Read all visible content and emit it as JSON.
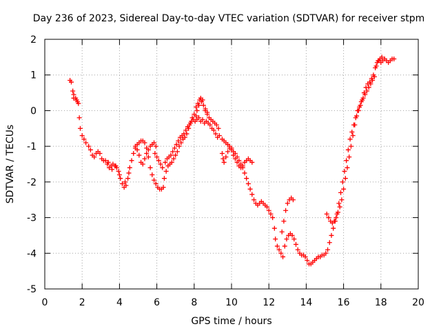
{
  "chart_data": {
    "type": "scatter",
    "title": "Day 236 of 2023, Sidereal Day-to-day VTEC variation (SDTVAR) for receiver stpm",
    "xlabel": "GPS time / hours",
    "ylabel": "SDTVAR / TECUs",
    "xlim": [
      0,
      20
    ],
    "ylim": [
      -5,
      2
    ],
    "xticks": [
      "0",
      "2",
      "4",
      "6",
      "8",
      "10",
      "12",
      "14",
      "16",
      "18",
      "20"
    ],
    "yticks": [
      "2",
      "1",
      "0",
      "-1",
      "-2",
      "-3",
      "-4",
      "-5"
    ],
    "grid": true,
    "marker": "plus",
    "series_color": "#ff0000",
    "series": [
      {
        "points": [
          [
            1.35,
            0.85
          ],
          [
            1.42,
            0.8
          ],
          [
            1.5,
            0.55
          ],
          [
            1.55,
            0.35
          ],
          [
            1.65,
            0.35
          ],
          [
            1.75,
            0.25
          ],
          [
            1.8,
            0.2
          ],
          [
            1.85,
            -0.2
          ],
          [
            1.9,
            -0.5
          ],
          [
            2.0,
            -0.7
          ],
          [
            2.1,
            -0.8
          ],
          [
            2.2,
            -0.9
          ],
          [
            2.35,
            -1.0
          ],
          [
            2.45,
            -1.1
          ],
          [
            2.55,
            -1.25
          ],
          [
            2.65,
            -1.3
          ],
          [
            2.75,
            -1.2
          ],
          [
            2.85,
            -1.15
          ],
          [
            2.95,
            -1.2
          ],
          [
            3.05,
            -1.35
          ],
          [
            3.15,
            -1.4
          ],
          [
            3.25,
            -1.4
          ],
          [
            3.35,
            -1.5
          ],
          [
            3.45,
            -1.6
          ],
          [
            3.55,
            -1.55
          ],
          [
            3.65,
            -1.5
          ],
          [
            3.75,
            -1.55
          ],
          [
            3.85,
            -1.6
          ],
          [
            3.95,
            -1.7
          ],
          [
            4.05,
            -1.9
          ],
          [
            4.15,
            -2.05
          ],
          [
            4.25,
            -2.15
          ],
          [
            4.35,
            -2.1
          ],
          [
            4.45,
            -1.9
          ],
          [
            4.55,
            -1.6
          ],
          [
            4.65,
            -1.4
          ],
          [
            4.75,
            -1.2
          ],
          [
            4.85,
            -1.05
          ],
          [
            4.95,
            -0.95
          ],
          [
            5.05,
            -0.9
          ],
          [
            5.15,
            -0.85
          ],
          [
            5.25,
            -0.85
          ],
          [
            5.35,
            -0.9
          ],
          [
            5.45,
            -1.05
          ],
          [
            5.55,
            -1.3
          ],
          [
            5.65,
            -1.6
          ],
          [
            5.75,
            -1.8
          ],
          [
            5.85,
            -1.95
          ],
          [
            5.95,
            -2.05
          ],
          [
            6.05,
            -2.15
          ],
          [
            6.15,
            -2.2
          ],
          [
            6.25,
            -2.2
          ],
          [
            6.35,
            -2.15
          ],
          [
            6.4,
            -1.9
          ],
          [
            6.5,
            -1.7
          ],
          [
            6.6,
            -1.55
          ],
          [
            6.7,
            -1.5
          ],
          [
            6.8,
            -1.45
          ],
          [
            6.9,
            -1.35
          ],
          [
            7.0,
            -1.25
          ],
          [
            7.1,
            -1.15
          ],
          [
            7.2,
            -1.0
          ],
          [
            7.3,
            -0.9
          ],
          [
            7.4,
            -0.8
          ],
          [
            7.5,
            -0.75
          ],
          [
            7.6,
            -0.65
          ],
          [
            7.7,
            -0.5
          ],
          [
            7.8,
            -0.35
          ],
          [
            7.9,
            -0.2
          ],
          [
            8.0,
            -0.1
          ],
          [
            8.1,
            0.1
          ],
          [
            8.2,
            0.2
          ],
          [
            8.3,
            0.3
          ],
          [
            8.4,
            0.25
          ],
          [
            8.5,
            0.15
          ],
          [
            8.6,
            0.0
          ],
          [
            8.7,
            -0.1
          ],
          [
            8.8,
            -0.2
          ],
          [
            8.9,
            -0.25
          ],
          [
            9.0,
            -0.3
          ],
          [
            9.1,
            -0.35
          ],
          [
            9.2,
            -0.4
          ],
          [
            9.3,
            -0.5
          ],
          [
            9.35,
            -0.7
          ],
          [
            9.5,
            -0.8
          ],
          [
            9.6,
            -0.85
          ],
          [
            9.7,
            -0.9
          ],
          [
            9.8,
            -0.95
          ],
          [
            9.9,
            -1.0
          ],
          [
            10.0,
            -1.05
          ],
          [
            10.1,
            -1.15
          ],
          [
            10.2,
            -1.2
          ],
          [
            10.3,
            -1.3
          ],
          [
            10.4,
            -1.4
          ],
          [
            10.5,
            -1.5
          ],
          [
            10.6,
            -1.6
          ],
          [
            10.7,
            -1.75
          ],
          [
            10.8,
            -1.9
          ],
          [
            10.9,
            -2.05
          ],
          [
            11.0,
            -2.2
          ],
          [
            11.1,
            -2.35
          ],
          [
            11.2,
            -2.5
          ],
          [
            11.3,
            -2.6
          ],
          [
            11.4,
            -2.65
          ],
          [
            11.5,
            -2.6
          ],
          [
            11.6,
            -2.55
          ],
          [
            11.7,
            -2.6
          ],
          [
            11.8,
            -2.65
          ],
          [
            11.9,
            -2.7
          ],
          [
            12.0,
            -2.8
          ],
          [
            12.1,
            -2.9
          ],
          [
            12.2,
            -3.0
          ],
          [
            12.3,
            -3.3
          ],
          [
            12.35,
            -3.6
          ],
          [
            12.45,
            -3.8
          ],
          [
            12.55,
            -3.9
          ],
          [
            12.65,
            -4.0
          ],
          [
            12.75,
            -4.1
          ],
          [
            12.85,
            -3.8
          ],
          [
            12.95,
            -3.6
          ],
          [
            13.05,
            -3.5
          ],
          [
            13.15,
            -3.45
          ],
          [
            13.25,
            -3.5
          ],
          [
            13.35,
            -3.6
          ],
          [
            13.45,
            -3.75
          ],
          [
            13.55,
            -3.9
          ],
          [
            13.65,
            -4.0
          ],
          [
            13.75,
            -4.05
          ],
          [
            13.85,
            -4.05
          ],
          [
            13.95,
            -4.1
          ],
          [
            14.05,
            -4.2
          ],
          [
            14.15,
            -4.3
          ],
          [
            14.25,
            -4.3
          ],
          [
            14.35,
            -4.25
          ],
          [
            14.45,
            -4.2
          ],
          [
            14.55,
            -4.15
          ],
          [
            14.65,
            -4.1
          ],
          [
            14.75,
            -4.1
          ],
          [
            14.85,
            -4.05
          ],
          [
            14.95,
            -4.05
          ],
          [
            15.05,
            -4.0
          ],
          [
            15.15,
            -3.9
          ],
          [
            15.25,
            -3.7
          ],
          [
            15.35,
            -3.5
          ],
          [
            15.45,
            -3.3
          ],
          [
            15.55,
            -3.1
          ],
          [
            15.65,
            -2.9
          ],
          [
            15.75,
            -2.6
          ],
          [
            15.85,
            -2.3
          ],
          [
            15.95,
            -2.0
          ],
          [
            16.05,
            -1.7
          ],
          [
            16.15,
            -1.4
          ],
          [
            16.25,
            -1.1
          ],
          [
            16.35,
            -0.8
          ],
          [
            16.45,
            -0.6
          ],
          [
            16.55,
            -0.4
          ],
          [
            16.65,
            -0.2
          ],
          [
            16.75,
            0.0
          ],
          [
            16.85,
            0.1
          ],
          [
            16.95,
            0.25
          ],
          [
            17.05,
            0.35
          ],
          [
            17.15,
            0.45
          ],
          [
            17.25,
            0.55
          ],
          [
            17.35,
            0.65
          ],
          [
            17.45,
            0.75
          ],
          [
            17.55,
            0.85
          ],
          [
            17.65,
            0.95
          ],
          [
            17.7,
            1.2
          ],
          [
            17.8,
            1.35
          ],
          [
            17.9,
            1.4
          ],
          [
            18.0,
            1.35
          ],
          [
            18.1,
            1.4
          ],
          [
            18.2,
            1.45
          ],
          [
            18.3,
            1.4
          ],
          [
            18.4,
            1.35
          ],
          [
            18.5,
            1.4
          ],
          [
            18.6,
            1.45
          ],
          [
            18.7,
            1.45
          ],
          [
            1.55,
            0.45
          ],
          [
            1.7,
            0.3
          ],
          [
            5.9,
            -1.2
          ],
          [
            6.0,
            -1.3
          ],
          [
            6.1,
            -1.4
          ],
          [
            6.2,
            -1.5
          ],
          [
            6.3,
            -1.6
          ],
          [
            6.45,
            -1.45
          ],
          [
            6.55,
            -1.35
          ],
          [
            6.65,
            -1.3
          ],
          [
            6.75,
            -1.25
          ],
          [
            6.85,
            -1.15
          ],
          [
            6.95,
            -1.05
          ],
          [
            7.05,
            -0.95
          ],
          [
            7.15,
            -0.85
          ],
          [
            7.25,
            -0.75
          ],
          [
            7.35,
            -0.7
          ],
          [
            7.45,
            -0.65
          ],
          [
            7.55,
            -0.55
          ],
          [
            7.65,
            -0.45
          ],
          [
            7.75,
            -0.4
          ],
          [
            7.85,
            -0.3
          ],
          [
            7.95,
            -0.25
          ],
          [
            8.05,
            -0.3
          ],
          [
            8.15,
            -0.25
          ],
          [
            8.25,
            -0.2
          ],
          [
            8.35,
            -0.3
          ],
          [
            8.45,
            -0.25
          ],
          [
            8.55,
            -0.35
          ],
          [
            8.65,
            -0.3
          ],
          [
            8.75,
            -0.35
          ],
          [
            8.85,
            -0.4
          ],
          [
            8.95,
            -0.5
          ],
          [
            9.05,
            -0.55
          ],
          [
            9.15,
            -0.65
          ],
          [
            9.25,
            -0.75
          ],
          [
            9.5,
            -1.2
          ],
          [
            9.55,
            -1.35
          ],
          [
            9.6,
            -1.45
          ],
          [
            9.7,
            -1.3
          ],
          [
            9.8,
            -1.15
          ],
          [
            9.9,
            -1.05
          ],
          [
            10.0,
            -1.1
          ],
          [
            10.1,
            -1.25
          ],
          [
            10.2,
            -1.35
          ],
          [
            10.3,
            -1.45
          ],
          [
            10.4,
            -1.55
          ],
          [
            10.5,
            -1.6
          ],
          [
            10.6,
            -1.55
          ],
          [
            10.7,
            -1.45
          ],
          [
            10.8,
            -1.4
          ],
          [
            10.9,
            -1.35
          ],
          [
            11.0,
            -1.4
          ],
          [
            11.1,
            -1.45
          ],
          [
            5.95,
            -1.0
          ],
          [
            5.85,
            -0.9
          ],
          [
            5.75,
            -0.95
          ],
          [
            5.65,
            -1.0
          ],
          [
            5.55,
            -1.1
          ],
          [
            5.45,
            -1.2
          ],
          [
            5.35,
            -1.35
          ],
          [
            5.25,
            -1.5
          ],
          [
            5.15,
            -1.45
          ],
          [
            5.05,
            -1.25
          ],
          [
            4.95,
            -1.1
          ],
          [
            4.85,
            -1.0
          ],
          [
            15.1,
            -2.9
          ],
          [
            15.2,
            -3.0
          ],
          [
            15.3,
            -3.1
          ],
          [
            15.4,
            -3.15
          ],
          [
            15.5,
            -3.1
          ],
          [
            15.6,
            -3.0
          ],
          [
            15.7,
            -2.85
          ],
          [
            15.8,
            -2.7
          ],
          [
            15.9,
            -2.5
          ],
          [
            16.0,
            -2.2
          ],
          [
            16.1,
            -1.9
          ],
          [
            16.2,
            -1.6
          ],
          [
            16.3,
            -1.3
          ],
          [
            16.4,
            -1.0
          ],
          [
            16.5,
            -0.7
          ],
          [
            16.6,
            -0.4
          ],
          [
            16.7,
            -0.15
          ],
          [
            16.8,
            0.0
          ],
          [
            16.9,
            0.15
          ],
          [
            17.0,
            0.3
          ],
          [
            17.1,
            0.5
          ],
          [
            17.2,
            0.65
          ],
          [
            17.3,
            0.75
          ],
          [
            17.4,
            0.8
          ],
          [
            17.5,
            0.9
          ],
          [
            17.6,
            1.0
          ],
          [
            17.75,
            1.25
          ],
          [
            17.85,
            1.4
          ],
          [
            17.95,
            1.45
          ],
          [
            18.05,
            1.5
          ],
          [
            13.0,
            -2.6
          ],
          [
            13.1,
            -2.5
          ],
          [
            13.2,
            -2.45
          ],
          [
            13.3,
            -2.5
          ],
          [
            12.7,
            -3.4
          ],
          [
            12.8,
            -3.1
          ],
          [
            12.9,
            -2.8
          ],
          [
            3.4,
            -1.45
          ],
          [
            3.6,
            -1.65
          ],
          [
            3.8,
            -1.55
          ],
          [
            4.0,
            -1.8
          ],
          [
            4.3,
            -2.0
          ],
          [
            4.5,
            -1.75
          ],
          [
            8.35,
            0.35
          ],
          [
            8.45,
            0.3
          ],
          [
            8.25,
            0.15
          ],
          [
            8.15,
            0.0
          ],
          [
            8.1,
            -0.15
          ],
          [
            8.6,
            0.05
          ],
          [
            8.7,
            -0.05
          ]
        ]
      }
    ]
  }
}
